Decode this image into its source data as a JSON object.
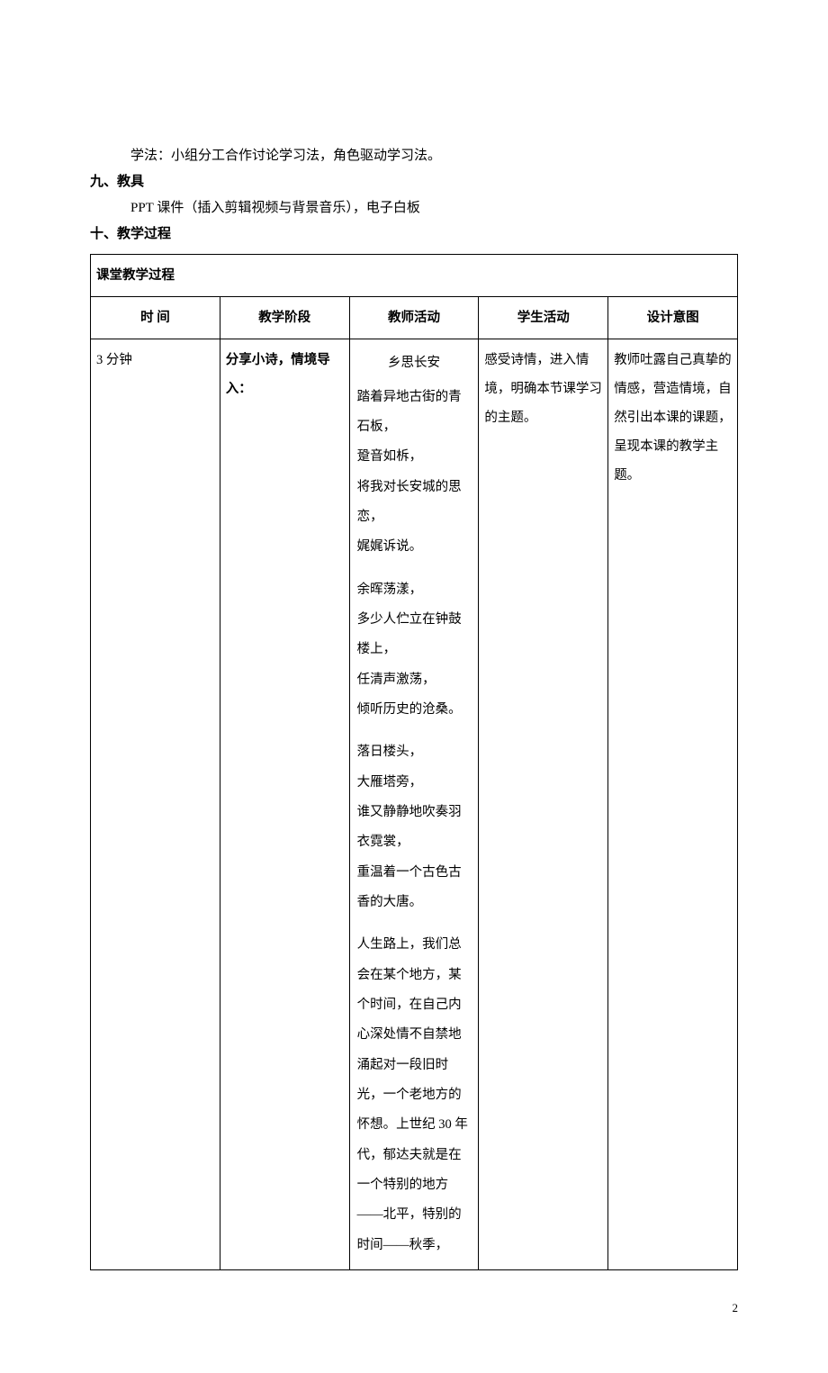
{
  "intro": {
    "learning_method": "学法：小组分工合作讨论学习法，角色驱动学习法。"
  },
  "section9": {
    "heading": "九、教具",
    "content": "PPT 课件（插入剪辑视频与背景音乐），电子白板"
  },
  "section10": {
    "heading": "十、教学过程"
  },
  "table": {
    "process_header": "课堂教学过程",
    "columns": {
      "time": "时 间",
      "stage": "教学阶段",
      "teacher": "教师活动",
      "student": "学生活动",
      "intent": "设计意图"
    },
    "row": {
      "time": "3 分钟",
      "stage": "分享小诗，情境导入：",
      "teacher": {
        "poem_title": "乡思长安",
        "stanza1_l1": "踏着异地古街的青石板，",
        "stanza1_l2": "跫音如柝，",
        "stanza1_l3": "将我对长安城的思恋，",
        "stanza1_l4": "娓娓诉说。",
        "stanza2_l1": "余晖荡漾，",
        "stanza2_l2": "多少人伫立在钟鼓楼上，",
        "stanza2_l3": "任清声激荡，",
        "stanza2_l4": "倾听历史的沧桑。",
        "stanza3_l1": "落日楼头，",
        "stanza3_l2": "大雁塔旁，",
        "stanza3_l3": "谁又静静地吹奏羽衣霓裳，",
        "stanza3_l4": "重温着一个古色古香的大唐。",
        "prose": "人生路上，我们总会在某个地方，某个时间，在自己内心深处情不自禁地涌起对一段旧时光，一个老地方的怀想。上世纪 30 年代，郁达夫就是在一个特别的地方——北平，特别的时间——秋季，"
      },
      "student": "感受诗情，进入情境，明确本节课学习的主题。",
      "intent": "教师吐露自己真挚的情感，营造情境，自然引出本课的课题，呈现本课的教学主题。"
    }
  },
  "page_number": "2"
}
